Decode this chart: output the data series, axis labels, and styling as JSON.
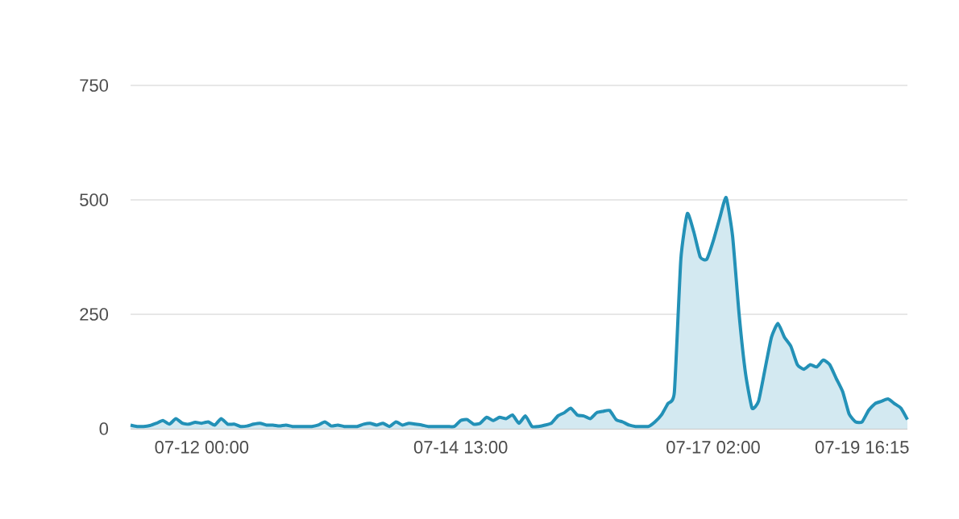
{
  "chart_data": {
    "type": "area",
    "categories": [
      null,
      null,
      null,
      null,
      null,
      null,
      null,
      null,
      null,
      null,
      null,
      "07-12 00:00",
      null,
      null,
      null,
      null,
      null,
      null,
      null,
      null,
      null,
      null,
      null,
      null,
      null,
      null,
      null,
      null,
      null,
      null,
      null,
      null,
      null,
      null,
      null,
      null,
      null,
      null,
      null,
      null,
      null,
      null,
      null,
      null,
      null,
      null,
      null,
      null,
      null,
      null,
      null,
      "07-14 13:00",
      null,
      null,
      null,
      null,
      null,
      null,
      null,
      null,
      null,
      null,
      null,
      null,
      null,
      null,
      null,
      null,
      null,
      null,
      null,
      null,
      null,
      null,
      null,
      null,
      null,
      null,
      null,
      null,
      null,
      null,
      null,
      null,
      null,
      null,
      null,
      null,
      null,
      null,
      "07-17 02:00",
      null,
      null,
      null,
      null,
      null,
      null,
      null,
      null,
      null,
      null,
      null,
      null,
      null,
      null,
      null,
      null,
      null,
      null,
      null,
      null,
      null,
      null,
      "07-19 16:15",
      null,
      null,
      null,
      null,
      null,
      null,
      null
    ],
    "series": [
      {
        "color": "#2391b7",
        "values": [
          8,
          5,
          5,
          7,
          12,
          18,
          10,
          22,
          12,
          10,
          14,
          12,
          15,
          8,
          22,
          10,
          10,
          5,
          6,
          10,
          12,
          8,
          8,
          6,
          8,
          5,
          5,
          5,
          5,
          8,
          15,
          6,
          8,
          5,
          5,
          5,
          10,
          12,
          8,
          12,
          5,
          15,
          8,
          12,
          10,
          8,
          5,
          5,
          5,
          5,
          5,
          18,
          20,
          10,
          12,
          25,
          18,
          25,
          22,
          30,
          12,
          28,
          5,
          5,
          8,
          12,
          28,
          35,
          45,
          30,
          28,
          22,
          35,
          38,
          40,
          20,
          15,
          8,
          5,
          5,
          5,
          15,
          30,
          55,
          80,
          370,
          470,
          430,
          375,
          370,
          410,
          460,
          505,
          420,
          250,
          120,
          45,
          60,
          130,
          200,
          230,
          200,
          180,
          140,
          130,
          140,
          135,
          150,
          140,
          110,
          81,
          32,
          15,
          15,
          40,
          55,
          60,
          65,
          55,
          45,
          20
        ]
      }
    ],
    "ylim": [
      0,
      750
    ],
    "yticks": [
      0,
      250,
      500,
      750
    ],
    "grid": "y"
  }
}
